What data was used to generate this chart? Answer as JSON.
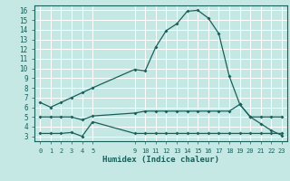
{
  "xlabel": "Humidex (Indice chaleur)",
  "background_color": "#c5e8e4",
  "grid_color": "#ffffff",
  "line_color": "#1a5f5a",
  "x_ticks": [
    0,
    1,
    2,
    3,
    4,
    5,
    9,
    10,
    11,
    12,
    13,
    14,
    15,
    16,
    17,
    18,
    19,
    20,
    21,
    22,
    23
  ],
  "series1_x": [
    0,
    1,
    2,
    3,
    4,
    5,
    9,
    10,
    11,
    12,
    13,
    14,
    15,
    16,
    17,
    18,
    19,
    20,
    21,
    22,
    23
  ],
  "series1_y": [
    6.5,
    6.0,
    6.5,
    7.0,
    7.5,
    8.0,
    9.9,
    9.75,
    12.2,
    13.9,
    14.6,
    15.9,
    16.0,
    15.2,
    13.6,
    9.2,
    6.3,
    5.0,
    4.3,
    3.6,
    3.1
  ],
  "series2_x": [
    0,
    1,
    2,
    3,
    4,
    5,
    9,
    10,
    11,
    12,
    13,
    14,
    15,
    16,
    17,
    18,
    19,
    20,
    21,
    22,
    23
  ],
  "series2_y": [
    5.0,
    5.0,
    5.0,
    5.0,
    4.7,
    5.1,
    5.4,
    5.6,
    5.6,
    5.6,
    5.6,
    5.6,
    5.6,
    5.6,
    5.6,
    5.6,
    6.3,
    5.0,
    5.0,
    5.0,
    5.0
  ],
  "series3_x": [
    0,
    1,
    2,
    3,
    4,
    5,
    9,
    10,
    11,
    12,
    13,
    14,
    15,
    16,
    17,
    18,
    19,
    20,
    21,
    22,
    23
  ],
  "series3_y": [
    3.3,
    3.3,
    3.3,
    3.4,
    3.0,
    4.5,
    3.3,
    3.3,
    3.3,
    3.3,
    3.3,
    3.3,
    3.3,
    3.3,
    3.3,
    3.3,
    3.3,
    3.3,
    3.3,
    3.3,
    3.3
  ],
  "ylim": [
    2.5,
    16.5
  ],
  "xlim": [
    -0.5,
    23.5
  ],
  "yticks": [
    3,
    4,
    5,
    6,
    7,
    8,
    9,
    10,
    11,
    12,
    13,
    14,
    15,
    16
  ]
}
